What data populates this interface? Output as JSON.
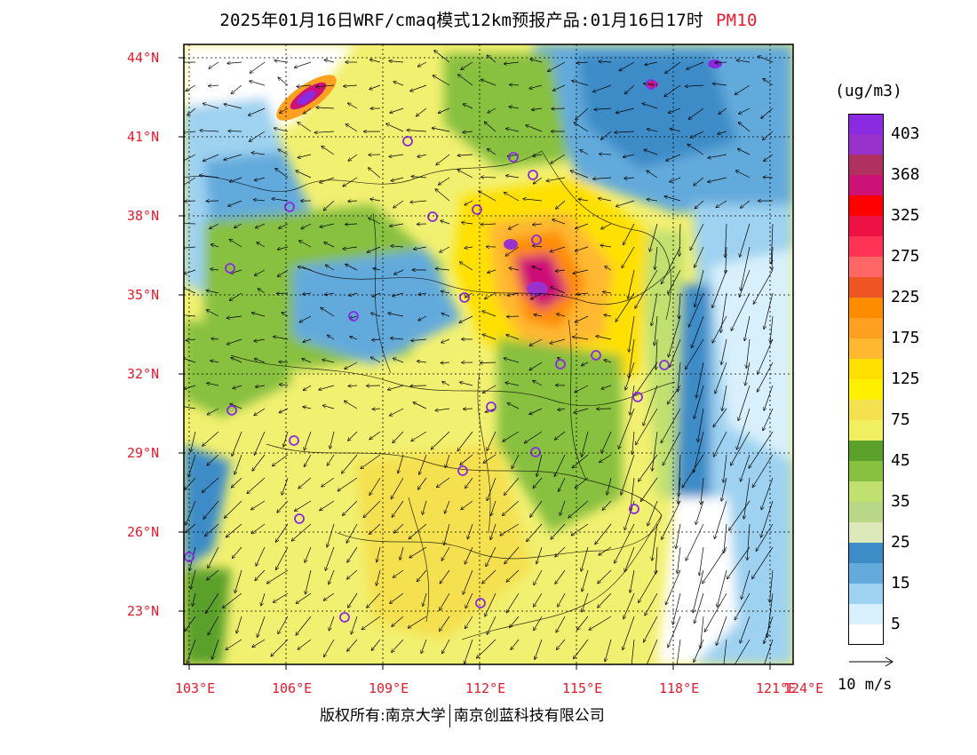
{
  "title": {
    "main": "2025年01月16日WRF/cmaq模式12km预报产品:01月16日17时",
    "variable": "PM10"
  },
  "legend": {
    "units": "(ug/m3)",
    "colors": [
      "#8a2be2",
      "#9932cc",
      "#b03060",
      "#cc1177",
      "#ff0000",
      "#ee1144",
      "#ff3355",
      "#ff6666",
      "#ee5522",
      "#ff8c00",
      "#ffa020",
      "#ffb830",
      "#ffe000",
      "#fff000",
      "#f5e050",
      "#f0f060",
      "#5aa02a",
      "#88c040",
      "#c0e070",
      "#b8d888",
      "#dde8bb",
      "#3c8cc8",
      "#64aadc",
      "#9ed2f0",
      "#d8f0fc",
      "#ffffff"
    ],
    "labels": [
      "403",
      "368",
      "325",
      "275",
      "225",
      "175",
      "125",
      "75",
      "45",
      "35",
      "25",
      "15",
      "5"
    ]
  },
  "wind_reference": {
    "label": "10 m/s"
  },
  "latitude_labels": [
    "44°N",
    "41°N",
    "38°N",
    "35°N",
    "32°N",
    "29°N",
    "26°N",
    "23°N"
  ],
  "longitude_labels": [
    "103°E",
    "106°E",
    "109°E",
    "112°E",
    "115°E",
    "118°E",
    "121°E",
    "124°E"
  ],
  "copyright": {
    "left": "版权所有:南京大学",
    "right": "南京创蓝科技有限公司"
  }
}
